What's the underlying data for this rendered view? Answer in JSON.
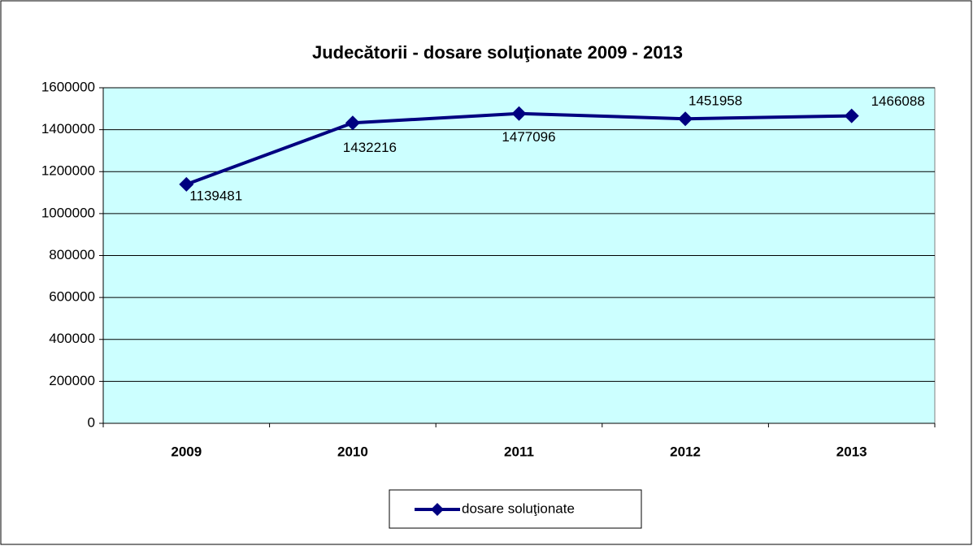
{
  "chart_data": {
    "type": "line",
    "title": "Judecătorii - dosare soluţionate 2009 - 2013",
    "categories": [
      "2009",
      "2010",
      "2011",
      "2012",
      "2013"
    ],
    "series": [
      {
        "name": "dosare soluţionate",
        "color": "#000080",
        "values": [
          1139481,
          1432216,
          1477096,
          1451958,
          1466088
        ]
      }
    ],
    "ylim": [
      0,
      1600000
    ],
    "yticks": [
      0,
      200000,
      400000,
      600000,
      800000,
      1000000,
      1200000,
      1400000,
      1600000
    ],
    "grid": true,
    "legend": "bottom",
    "plot_background": "#ccffff"
  }
}
